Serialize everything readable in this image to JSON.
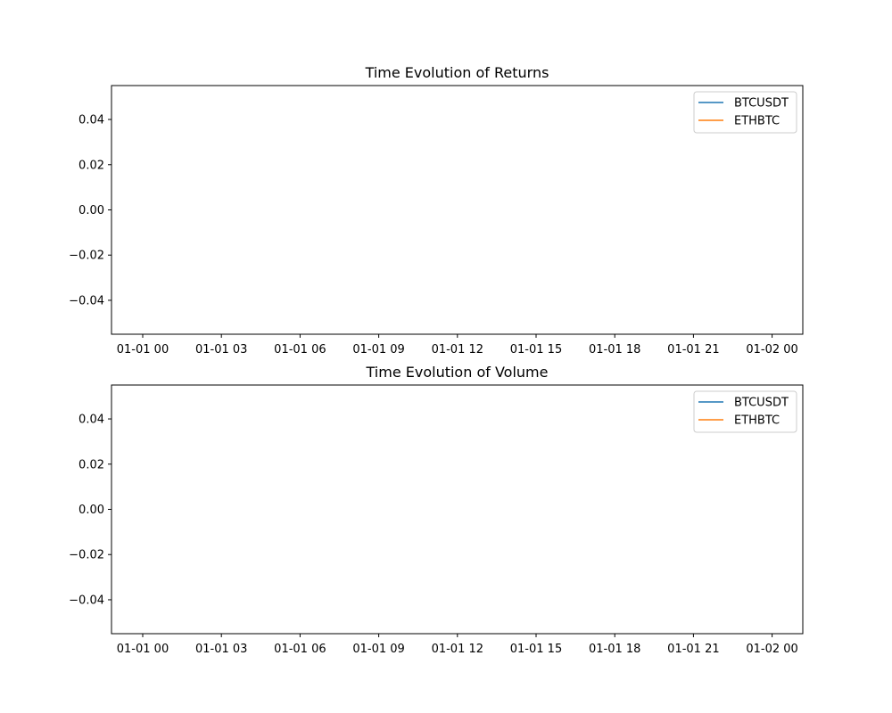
{
  "chart_data": [
    {
      "type": "line",
      "title": "Time Evolution of Returns",
      "xlabel": "",
      "ylabel": "",
      "x_tick_labels": [
        "01-01 00",
        "01-01 03",
        "01-01 06",
        "01-01 09",
        "01-01 12",
        "01-01 15",
        "01-01 18",
        "01-01 21",
        "01-02 00"
      ],
      "y_ticks": [
        0.04,
        0.02,
        0.0,
        -0.02,
        -0.04
      ],
      "y_tick_labels": [
        "0.04",
        "0.02",
        "0.00",
        "−0.02",
        "−0.04"
      ],
      "ylim": [
        -0.055,
        0.055
      ],
      "grid": false,
      "legend_position": "top-right",
      "series": [
        {
          "name": "BTCUSDT",
          "color": "#1f77b4",
          "x": [],
          "values": []
        },
        {
          "name": "ETHBTC",
          "color": "#ff7f0e",
          "x": [],
          "values": []
        }
      ]
    },
    {
      "type": "line",
      "title": "Time Evolution of Volume",
      "xlabel": "",
      "ylabel": "",
      "x_tick_labels": [
        "01-01 00",
        "01-01 03",
        "01-01 06",
        "01-01 09",
        "01-01 12",
        "01-01 15",
        "01-01 18",
        "01-01 21",
        "01-02 00"
      ],
      "y_ticks": [
        0.04,
        0.02,
        0.0,
        -0.02,
        -0.04
      ],
      "y_tick_labels": [
        "0.04",
        "0.02",
        "0.00",
        "−0.02",
        "−0.04"
      ],
      "ylim": [
        -0.055,
        0.055
      ],
      "grid": false,
      "legend_position": "top-right",
      "series": [
        {
          "name": "BTCUSDT",
          "color": "#1f77b4",
          "x": [],
          "values": []
        },
        {
          "name": "ETHBTC",
          "color": "#ff7f0e",
          "x": [],
          "values": []
        }
      ]
    }
  ]
}
